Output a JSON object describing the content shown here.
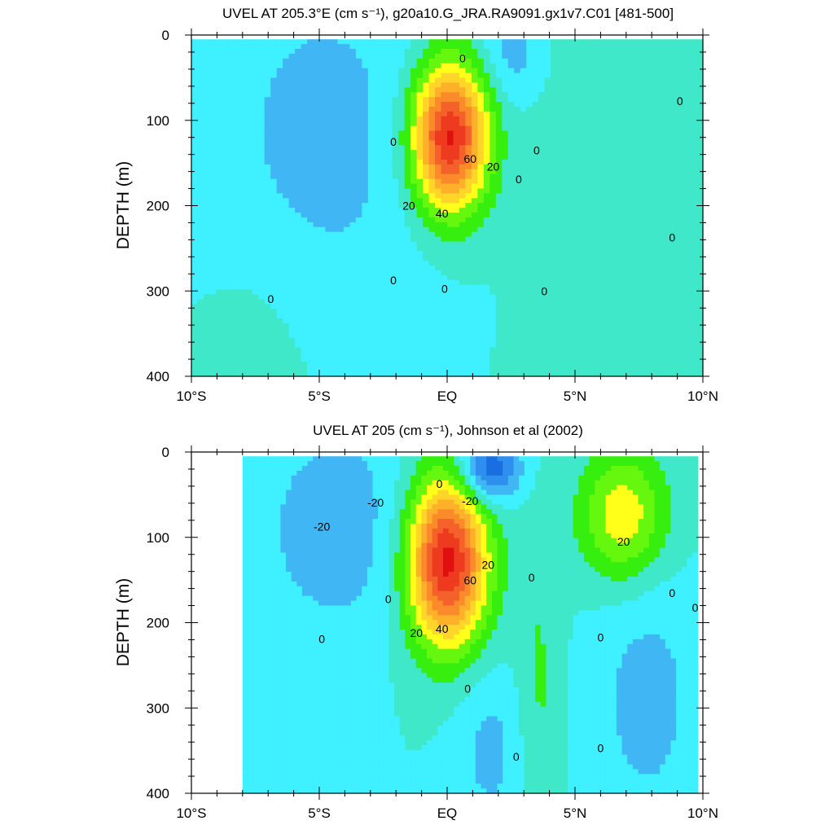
{
  "colors": {
    "scale": [
      "#1a6fe0",
      "#2f8fef",
      "#40b6f5",
      "#3ff0ff",
      "#3fe8c8",
      "#36ef0f",
      "#66f70f",
      "#ffff1a",
      "#ffd52a",
      "#ffb02a",
      "#fb8a2a",
      "#f5612a",
      "#ee3a1f",
      "#e01010"
    ],
    "levels": [
      -40,
      -30,
      -20,
      -10,
      0,
      10,
      20,
      30,
      40,
      50,
      60,
      70,
      80,
      90
    ]
  },
  "chart_data": [
    {
      "type": "heatmap",
      "id": "model",
      "title": "UVEL AT 205.3°E (cm s⁻¹), g20a10.G_JRA.RA9091.gx1v7.C01 [481-500]",
      "ylabel": "DEPTH (m)",
      "xlabel": "",
      "xlim": [
        -10,
        10
      ],
      "ylim": [
        400,
        0
      ],
      "x_ticks": [
        {
          "value": -10,
          "label": "10°S"
        },
        {
          "value": -5,
          "label": "5°S"
        },
        {
          "value": 0,
          "label": "EQ"
        },
        {
          "value": 5,
          "label": "5°N"
        },
        {
          "value": 10,
          "label": "10°N"
        }
      ],
      "y_ticks": [
        {
          "value": 0,
          "label": "0"
        },
        {
          "value": 100,
          "label": "100"
        },
        {
          "value": 200,
          "label": "200"
        },
        {
          "value": 300,
          "label": "300"
        },
        {
          "value": 400,
          "label": "400"
        }
      ],
      "contour_interval": 10,
      "data_extent": {
        "lat": [
          -10,
          10
        ],
        "depth": [
          5,
          400
        ]
      },
      "features": [
        {
          "kind": "undercurrent-core",
          "lat": 0.1,
          "depth": 120,
          "peak": 95,
          "width_lat": 1.05,
          "width_depth": 62
        },
        {
          "kind": "westward",
          "lat": -4.8,
          "depth": 120,
          "peak": -13,
          "width_lat": 3.4,
          "width_depth": 160
        },
        {
          "kind": "westward",
          "lat": 2.6,
          "depth": 20,
          "peak": -15,
          "width_lat": 0.9,
          "width_depth": 40
        },
        {
          "kind": "eastward",
          "lat": 6.2,
          "depth": 180,
          "peak": 9,
          "width_lat": 2.0,
          "width_depth": 260
        },
        {
          "kind": "eastward",
          "lat": -7.6,
          "depth": 380,
          "peak": 7,
          "width_lat": 1.6,
          "width_depth": 90
        }
      ],
      "contour_labels": [
        {
          "text": "0",
          "lat": 0.6,
          "depth": 30
        },
        {
          "text": "0",
          "lat": -2.1,
          "depth": 128
        },
        {
          "text": "60",
          "lat": 0.9,
          "depth": 148
        },
        {
          "text": "20",
          "lat": 1.8,
          "depth": 157
        },
        {
          "text": "0",
          "lat": 2.8,
          "depth": 172
        },
        {
          "text": "0",
          "lat": 3.5,
          "depth": 138
        },
        {
          "text": "20",
          "lat": -1.5,
          "depth": 203
        },
        {
          "text": "40",
          "lat": -0.2,
          "depth": 212
        },
        {
          "text": "0",
          "lat": -2.1,
          "depth": 290
        },
        {
          "text": "0",
          "lat": -0.1,
          "depth": 300
        },
        {
          "text": "0",
          "lat": 3.8,
          "depth": 303
        },
        {
          "text": "0",
          "lat": -6.9,
          "depth": 312
        },
        {
          "text": "0",
          "lat": 9.1,
          "depth": 80
        },
        {
          "text": "0",
          "lat": 8.8,
          "depth": 240
        }
      ]
    },
    {
      "type": "heatmap",
      "id": "observed",
      "title": "UVEL AT 205 (cm s⁻¹), Johnson et al (2002)",
      "ylabel": "DEPTH (m)",
      "xlabel": "",
      "xlim": [
        -10,
        10
      ],
      "ylim": [
        400,
        0
      ],
      "x_ticks": [
        {
          "value": -10,
          "label": "10°S"
        },
        {
          "value": -5,
          "label": "5°S"
        },
        {
          "value": 0,
          "label": "EQ"
        },
        {
          "value": 5,
          "label": "5°N"
        },
        {
          "value": 10,
          "label": "10°N"
        }
      ],
      "y_ticks": [
        {
          "value": 0,
          "label": "0"
        },
        {
          "value": 100,
          "label": "100"
        },
        {
          "value": 200,
          "label": "200"
        },
        {
          "value": 300,
          "label": "300"
        },
        {
          "value": 400,
          "label": "400"
        }
      ],
      "contour_interval": 10,
      "data_extent": {
        "lat": [
          -8,
          9.8
        ],
        "depth": [
          5,
          400
        ]
      },
      "features": [
        {
          "kind": "undercurrent-core",
          "lat": 0.0,
          "depth": 128,
          "peak": 95,
          "width_lat": 1.1,
          "width_depth": 70
        },
        {
          "kind": "westward",
          "lat": -4.3,
          "depth": 90,
          "peak": -16,
          "width_lat": 2.3,
          "width_depth": 95
        },
        {
          "kind": "westward",
          "lat": 1.6,
          "depth": 20,
          "peak": -42,
          "width_lat": 0.85,
          "width_depth": 28
        },
        {
          "kind": "eastward",
          "lat": 6.9,
          "depth": 75,
          "peak": 38,
          "width_lat": 1.2,
          "width_depth": 55
        },
        {
          "kind": "westward",
          "lat": 7.8,
          "depth": 290,
          "peak": -14,
          "width_lat": 1.5,
          "width_depth": 110
        },
        {
          "kind": "westward",
          "lat": 1.7,
          "depth": 350,
          "peak": -13,
          "width_lat": 1.0,
          "width_depth": 70
        },
        {
          "kind": "eastward",
          "lat": 3.6,
          "depth": 290,
          "peak": 12,
          "width_lat": 0.6,
          "width_depth": 150
        }
      ],
      "contour_labels": [
        {
          "text": "0",
          "lat": -0.3,
          "depth": 40
        },
        {
          "text": "-20",
          "lat": 0.9,
          "depth": 60
        },
        {
          "text": "-20",
          "lat": -2.8,
          "depth": 62
        },
        {
          "text": "-20",
          "lat": -4.9,
          "depth": 90
        },
        {
          "text": "20",
          "lat": 1.6,
          "depth": 135
        },
        {
          "text": "60",
          "lat": 0.9,
          "depth": 153
        },
        {
          "text": "0",
          "lat": 3.3,
          "depth": 150
        },
        {
          "text": "0",
          "lat": -2.3,
          "depth": 175
        },
        {
          "text": "20",
          "lat": -1.2,
          "depth": 215
        },
        {
          "text": "40",
          "lat": -0.2,
          "depth": 210
        },
        {
          "text": "0",
          "lat": -4.9,
          "depth": 222
        },
        {
          "text": "0",
          "lat": 0.8,
          "depth": 280
        },
        {
          "text": "20",
          "lat": 6.9,
          "depth": 108
        },
        {
          "text": "0",
          "lat": 8.8,
          "depth": 168
        },
        {
          "text": "0",
          "lat": 9.7,
          "depth": 185
        },
        {
          "text": "0",
          "lat": 6.0,
          "depth": 220
        },
        {
          "text": "0",
          "lat": 2.7,
          "depth": 360
        },
        {
          "text": "0",
          "lat": 6.0,
          "depth": 350
        }
      ]
    }
  ]
}
